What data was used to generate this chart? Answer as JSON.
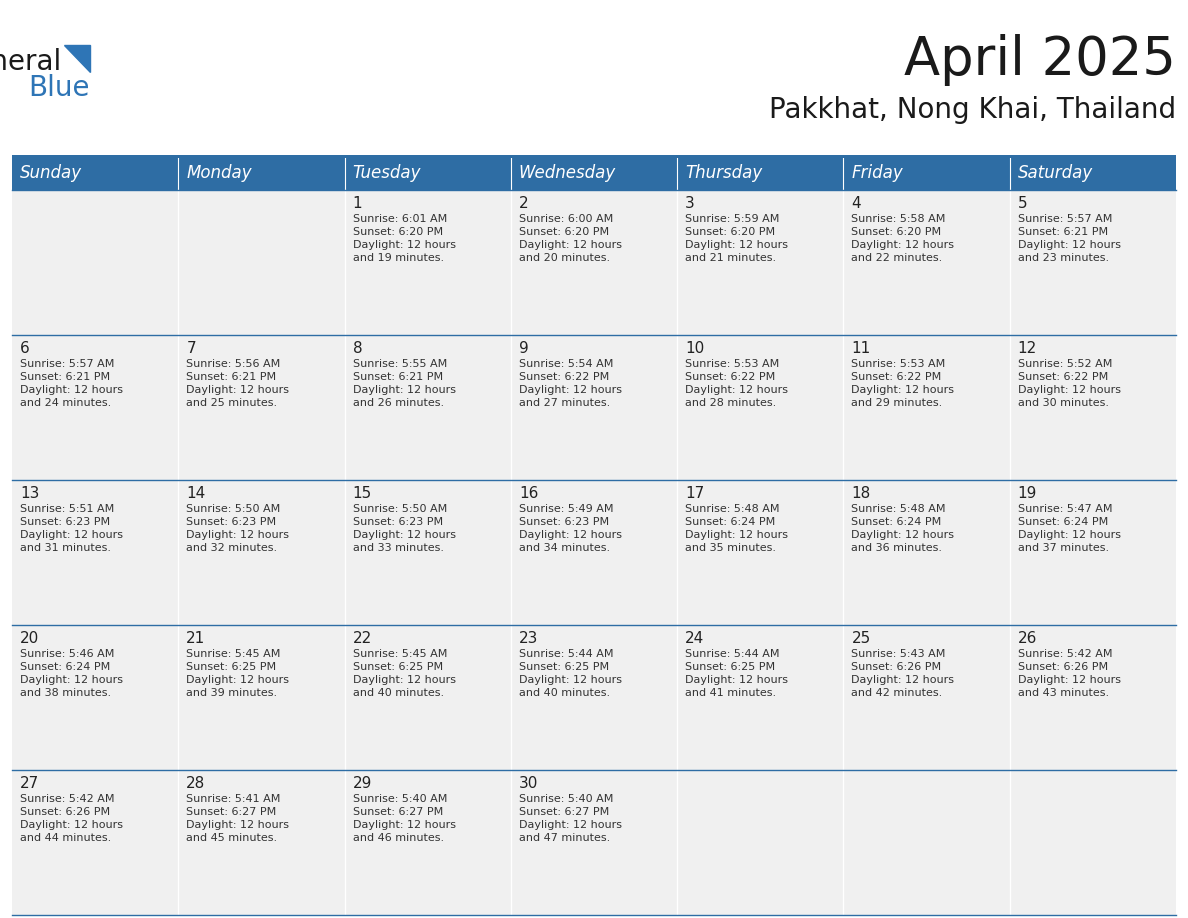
{
  "title": "April 2025",
  "subtitle": "Pakkhat, Nong Khai, Thailand",
  "header_color": "#2E6DA4",
  "header_text_color": "#FFFFFF",
  "cell_bg_color": "#F0F0F0",
  "cell_bg_empty": "#F0F0F0",
  "day_number_color": "#222222",
  "text_color": "#333333",
  "line_color": "#2E6DA4",
  "days_of_week": [
    "Sunday",
    "Monday",
    "Tuesday",
    "Wednesday",
    "Thursday",
    "Friday",
    "Saturday"
  ],
  "title_fontsize": 38,
  "subtitle_fontsize": 20,
  "header_fontsize": 12,
  "day_num_fontsize": 11,
  "cell_text_fontsize": 8,
  "calendar_data": [
    [
      {
        "day": 0,
        "sunrise": "",
        "sunset": "",
        "daylight_min": ""
      },
      {
        "day": 0,
        "sunrise": "",
        "sunset": "",
        "daylight_min": ""
      },
      {
        "day": 1,
        "sunrise": "6:01 AM",
        "sunset": "6:20 PM",
        "daylight_min": "19"
      },
      {
        "day": 2,
        "sunrise": "6:00 AM",
        "sunset": "6:20 PM",
        "daylight_min": "20"
      },
      {
        "day": 3,
        "sunrise": "5:59 AM",
        "sunset": "6:20 PM",
        "daylight_min": "21"
      },
      {
        "day": 4,
        "sunrise": "5:58 AM",
        "sunset": "6:20 PM",
        "daylight_min": "22"
      },
      {
        "day": 5,
        "sunrise": "5:57 AM",
        "sunset": "6:21 PM",
        "daylight_min": "23"
      }
    ],
    [
      {
        "day": 6,
        "sunrise": "5:57 AM",
        "sunset": "6:21 PM",
        "daylight_min": "24"
      },
      {
        "day": 7,
        "sunrise": "5:56 AM",
        "sunset": "6:21 PM",
        "daylight_min": "25"
      },
      {
        "day": 8,
        "sunrise": "5:55 AM",
        "sunset": "6:21 PM",
        "daylight_min": "26"
      },
      {
        "day": 9,
        "sunrise": "5:54 AM",
        "sunset": "6:22 PM",
        "daylight_min": "27"
      },
      {
        "day": 10,
        "sunrise": "5:53 AM",
        "sunset": "6:22 PM",
        "daylight_min": "28"
      },
      {
        "day": 11,
        "sunrise": "5:53 AM",
        "sunset": "6:22 PM",
        "daylight_min": "29"
      },
      {
        "day": 12,
        "sunrise": "5:52 AM",
        "sunset": "6:22 PM",
        "daylight_min": "30"
      }
    ],
    [
      {
        "day": 13,
        "sunrise": "5:51 AM",
        "sunset": "6:23 PM",
        "daylight_min": "31"
      },
      {
        "day": 14,
        "sunrise": "5:50 AM",
        "sunset": "6:23 PM",
        "daylight_min": "32"
      },
      {
        "day": 15,
        "sunrise": "5:50 AM",
        "sunset": "6:23 PM",
        "daylight_min": "33"
      },
      {
        "day": 16,
        "sunrise": "5:49 AM",
        "sunset": "6:23 PM",
        "daylight_min": "34"
      },
      {
        "day": 17,
        "sunrise": "5:48 AM",
        "sunset": "6:24 PM",
        "daylight_min": "35"
      },
      {
        "day": 18,
        "sunrise": "5:48 AM",
        "sunset": "6:24 PM",
        "daylight_min": "36"
      },
      {
        "day": 19,
        "sunrise": "5:47 AM",
        "sunset": "6:24 PM",
        "daylight_min": "37"
      }
    ],
    [
      {
        "day": 20,
        "sunrise": "5:46 AM",
        "sunset": "6:24 PM",
        "daylight_min": "38"
      },
      {
        "day": 21,
        "sunrise": "5:45 AM",
        "sunset": "6:25 PM",
        "daylight_min": "39"
      },
      {
        "day": 22,
        "sunrise": "5:45 AM",
        "sunset": "6:25 PM",
        "daylight_min": "40"
      },
      {
        "day": 23,
        "sunrise": "5:44 AM",
        "sunset": "6:25 PM",
        "daylight_min": "40"
      },
      {
        "day": 24,
        "sunrise": "5:44 AM",
        "sunset": "6:25 PM",
        "daylight_min": "41"
      },
      {
        "day": 25,
        "sunrise": "5:43 AM",
        "sunset": "6:26 PM",
        "daylight_min": "42"
      },
      {
        "day": 26,
        "sunrise": "5:42 AM",
        "sunset": "6:26 PM",
        "daylight_min": "43"
      }
    ],
    [
      {
        "day": 27,
        "sunrise": "5:42 AM",
        "sunset": "6:26 PM",
        "daylight_min": "44"
      },
      {
        "day": 28,
        "sunrise": "5:41 AM",
        "sunset": "6:27 PM",
        "daylight_min": "45"
      },
      {
        "day": 29,
        "sunrise": "5:40 AM",
        "sunset": "6:27 PM",
        "daylight_min": "46"
      },
      {
        "day": 30,
        "sunrise": "5:40 AM",
        "sunset": "6:27 PM",
        "daylight_min": "47"
      },
      {
        "day": 0,
        "sunrise": "",
        "sunset": "",
        "daylight_min": ""
      },
      {
        "day": 0,
        "sunrise": "",
        "sunset": "",
        "daylight_min": ""
      },
      {
        "day": 0,
        "sunrise": "",
        "sunset": "",
        "daylight_min": ""
      }
    ]
  ],
  "logo_triangle_color": "#2E75B6",
  "logo_blue_text_color": "#2E75B6",
  "logo_general_color": "#1a1a1a"
}
